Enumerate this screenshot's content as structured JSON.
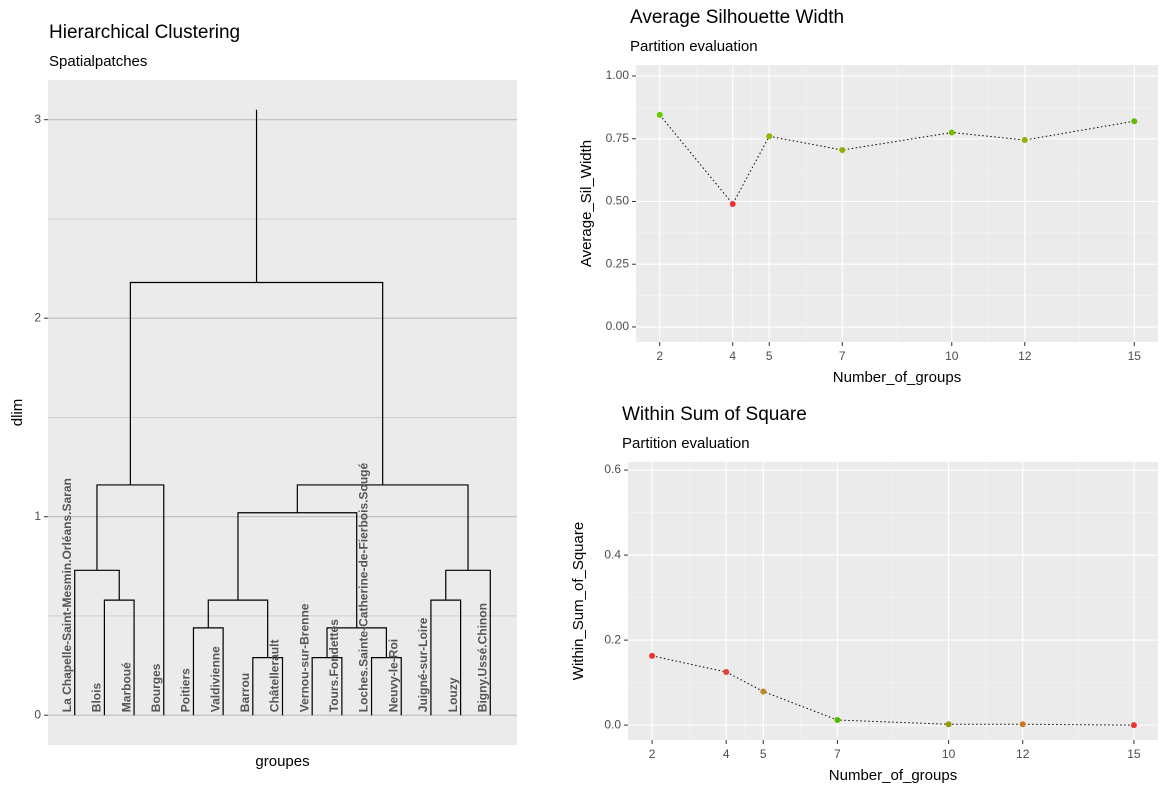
{
  "chart_data": [
    {
      "type": "dendrogram",
      "title": "Hierarchical Clustering",
      "subtitle": "Spatialpatches",
      "y_label": "dlim",
      "x_label": "groupes",
      "labels": [
        "La Chapelle-Saint-Mesmin.Orléans.Saran",
        "Blois",
        "Marboué",
        "Bourges",
        "Poitiers",
        "Valdivienne",
        "Barrou",
        "Châtellerault",
        "Vernou-sur-Brenne",
        "Tours.Fondettes",
        "Loches.Sainte-Catherine-de-Fierbois.Sougé",
        "Neuvy-le-Roi",
        "Juigné-sur-Loire",
        "Louzy",
        "Bigny.Ussé.Chinon"
      ],
      "merge": [
        [
          -2,
          -3
        ],
        [
          -1,
          1
        ],
        [
          2,
          -4
        ],
        [
          -5,
          -6
        ],
        [
          -7,
          -8
        ],
        [
          4,
          5
        ],
        [
          -9,
          -10
        ],
        [
          -11,
          -12
        ],
        [
          7,
          8
        ],
        [
          6,
          9
        ],
        [
          -13,
          -14
        ],
        [
          11,
          -15
        ],
        [
          10,
          12
        ],
        [
          3,
          13
        ]
      ],
      "height": [
        0.58,
        0.73,
        1.16,
        0.44,
        0.29,
        0.58,
        0.29,
        0.29,
        0.44,
        1.02,
        0.58,
        0.73,
        1.16,
        2.18
      ],
      "root_height": 3.05,
      "ylim": [
        -0.15,
        3.2
      ],
      "yticks": [
        0,
        1,
        2,
        3
      ],
      "yminor": [
        0.5,
        1.5,
        2.5
      ],
      "grid": true,
      "color": "#000000"
    },
    {
      "type": "scatter-line",
      "title": "Average Silhouette Width",
      "subtitle": "Partition evaluation",
      "y_label": "Average_Sil_Width",
      "x_label": "Number_of_groups",
      "x": [
        2,
        4,
        5,
        7,
        10,
        12,
        15
      ],
      "values": [
        0.845,
        0.49,
        0.76,
        0.705,
        0.775,
        0.745,
        0.82
      ],
      "point_colors": [
        "#66cc00",
        "#ee3333",
        "#88bb00",
        "#99aa00",
        "#77bb00",
        "#99aa00",
        "#66bb00"
      ],
      "xlim": [
        1.35,
        15.65
      ],
      "xticks": [
        2,
        4,
        5,
        7,
        10,
        12,
        15
      ],
      "xminor": [
        3,
        4.5,
        6,
        8.5,
        11,
        13.5
      ],
      "ylim": [
        -0.06,
        1.044
      ],
      "yticks": [
        {
          "value": 0,
          "label": "0.00"
        },
        {
          "value": 0.25,
          "label": "0.25"
        },
        {
          "value": 0.5,
          "label": "0.50"
        },
        {
          "value": 0.75,
          "label": "0.75"
        },
        {
          "value": 1,
          "label": "1.00"
        }
      ],
      "yminor": [
        0.125,
        0.375,
        0.625,
        0.875
      ],
      "grid": true
    },
    {
      "type": "scatter-line",
      "title": "Within Sum of Square",
      "subtitle": "Partition evaluation",
      "y_label": "Within_Sum_of_Square",
      "x_label": "Number_of_groups",
      "x": [
        2,
        4,
        5,
        7,
        10,
        12,
        15
      ],
      "values": [
        0.163,
        0.125,
        0.079,
        0.012,
        0.002,
        0.002,
        0
      ],
      "point_colors": [
        "#ee3333",
        "#dd4433",
        "#bb8822",
        "#55bb00",
        "#999900",
        "#cc7722",
        "#ee3333"
      ],
      "xlim": [
        1.35,
        15.65
      ],
      "xticks": [
        2,
        4,
        5,
        7,
        10,
        12,
        15
      ],
      "xminor": [
        3,
        4.5,
        6,
        8.5,
        11,
        13.5
      ],
      "ylim": [
        -0.035,
        0.619
      ],
      "yticks": [
        {
          "value": 0,
          "label": "0.0"
        },
        {
          "value": 0.2,
          "label": "0.2"
        },
        {
          "value": 0.4,
          "label": "0.4"
        },
        {
          "value": 0.6,
          "label": "0.6"
        }
      ],
      "yminor": [
        0.1,
        0.3,
        0.5
      ],
      "grid": true
    }
  ]
}
